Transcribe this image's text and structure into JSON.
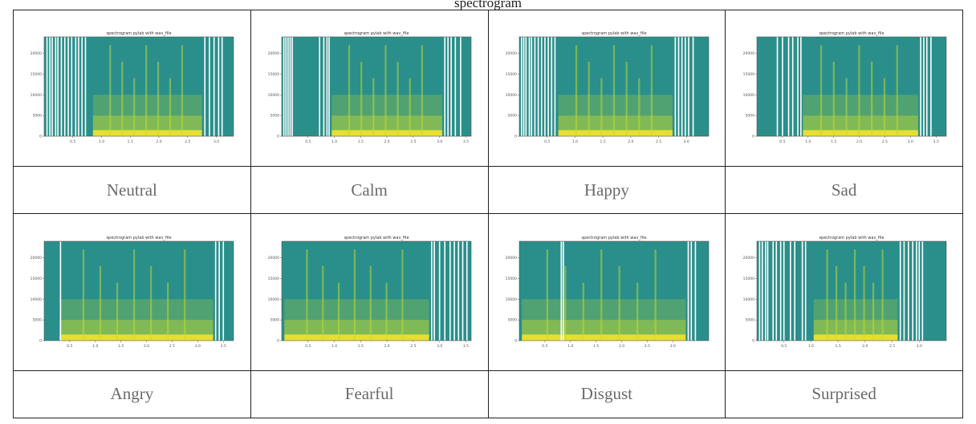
{
  "caption": "spectrogram",
  "plot_title": "spectrogram pylab with wav_file",
  "colors": {
    "background": "#2a8f8a",
    "band_high": "#c8dd2e",
    "band_low": "#fde725",
    "frame": "#555555",
    "border": "#222222"
  },
  "chart_data": [
    {
      "type": "heatmap",
      "label": "Neutral",
      "title": "spectrogram pylab with wav_file",
      "x_ticks": [
        0.5,
        1.0,
        1.5,
        2.0,
        2.5,
        3.0
      ],
      "xlim": [
        0,
        3.3
      ],
      "y_ticks": [
        0,
        5000,
        10000,
        15000,
        20000
      ],
      "ylim": [
        0,
        24000
      ],
      "speech_interval": [
        0.85,
        2.75
      ],
      "silence_lines": [
        0.05,
        0.1,
        0.14,
        0.2,
        0.24,
        0.3,
        0.36,
        0.42,
        0.48,
        0.55,
        0.6,
        0.66,
        0.72,
        2.8,
        2.88,
        2.96,
        3.04,
        3.1
      ]
    },
    {
      "type": "heatmap",
      "label": "Calm",
      "title": "spectrogram pylab with wav_file",
      "x_ticks": [
        0.5,
        1.0,
        1.5,
        2.0,
        2.5,
        3.0,
        3.5
      ],
      "xlim": [
        0,
        3.6
      ],
      "y_ticks": [
        0,
        5000,
        10000,
        15000,
        20000
      ],
      "ylim": [
        0,
        24000
      ],
      "speech_interval": [
        0.95,
        3.05
      ],
      "silence_lines": [
        0.04,
        0.08,
        0.12,
        0.16,
        0.2,
        0.72,
        0.8,
        0.86,
        0.9,
        3.1,
        3.16,
        3.22,
        3.3,
        3.4
      ]
    },
    {
      "type": "heatmap",
      "label": "Happy",
      "title": "spectrogram pylab with wav_file",
      "x_ticks": [
        0.5,
        1.0,
        1.5,
        2.0,
        2.5,
        3.0
      ],
      "xlim": [
        0,
        3.4
      ],
      "y_ticks": [
        0,
        5000,
        10000,
        15000,
        20000
      ],
      "ylim": [
        0,
        24000
      ],
      "speech_interval": [
        0.7,
        2.75
      ],
      "silence_lines": [
        0.04,
        0.08,
        0.12,
        0.18,
        0.22,
        0.28,
        0.34,
        0.4,
        0.46,
        0.52,
        0.58,
        0.64,
        2.8,
        2.86,
        2.92,
        2.98,
        3.04,
        3.12
      ]
    },
    {
      "type": "heatmap",
      "label": "Sad",
      "title": "spectrogram pylab with wav_file",
      "x_ticks": [
        0.5,
        1.0,
        1.5,
        2.0,
        2.5,
        3.0,
        3.5
      ],
      "xlim": [
        0,
        3.7
      ],
      "y_ticks": [
        0,
        5000,
        10000,
        15000,
        20000
      ],
      "ylim": [
        0,
        24000
      ],
      "speech_interval": [
        0.9,
        3.15
      ],
      "silence_lines": [
        0.4,
        0.5,
        0.62,
        0.7,
        0.8,
        0.86,
        3.2,
        3.26,
        3.32,
        3.4
      ]
    },
    {
      "type": "heatmap",
      "label": "Angry",
      "title": "spectrogram pylab with wav_file",
      "x_ticks": [
        0.5,
        1.0,
        1.5,
        2.0,
        2.5,
        3.0,
        3.5
      ],
      "xlim": [
        0,
        3.7
      ],
      "y_ticks": [
        0,
        5000,
        10000,
        15000,
        20000
      ],
      "ylim": [
        0,
        24000
      ],
      "speech_interval": [
        0.3,
        3.3
      ],
      "silence_lines": [
        0.32,
        3.35,
        3.42,
        3.5
      ]
    },
    {
      "type": "heatmap",
      "label": "Fearful",
      "title": "spectrogram pylab with wav_file",
      "x_ticks": [
        0.5,
        1.0,
        1.5,
        2.0,
        2.5,
        3.0,
        3.5
      ],
      "xlim": [
        0,
        3.6
      ],
      "y_ticks": [
        0,
        5000,
        10000,
        15000,
        20000
      ],
      "ylim": [
        0,
        24000
      ],
      "speech_interval": [
        0.05,
        2.8
      ],
      "silence_lines": [
        2.85,
        2.9,
        3.0,
        3.1,
        3.2,
        3.28,
        3.36,
        3.44,
        3.52
      ]
    },
    {
      "type": "heatmap",
      "label": "Disgust",
      "title": "spectrogram pylab with wav_file",
      "x_ticks": [
        0.5,
        1.0,
        1.5,
        2.0,
        2.5,
        3.0
      ],
      "xlim": [
        0,
        3.7
      ],
      "y_ticks": [
        0,
        5000,
        10000,
        15000,
        20000
      ],
      "ylim": [
        0,
        24000
      ],
      "speech_interval": [
        0.05,
        3.25
      ],
      "silence_lines": [
        0.82,
        0.86,
        3.3,
        3.36,
        3.44
      ]
    },
    {
      "type": "heatmap",
      "label": "Surprised",
      "title": "spectrogram pylab with wav_file",
      "x_ticks": [
        0.5,
        1.0,
        1.5,
        2.0,
        2.5,
        3.0
      ],
      "xlim": [
        0,
        3.5
      ],
      "y_ticks": [
        0,
        5000,
        10000,
        15000,
        20000
      ],
      "ylim": [
        0,
        24000
      ],
      "speech_interval": [
        1.05,
        2.6
      ],
      "silence_lines": [
        0.05,
        0.1,
        0.16,
        0.2,
        0.3,
        0.36,
        0.44,
        0.5,
        0.62,
        0.7,
        0.84,
        0.9,
        2.65,
        2.72,
        2.8,
        2.88,
        2.95,
        3.0,
        3.06
      ]
    }
  ]
}
